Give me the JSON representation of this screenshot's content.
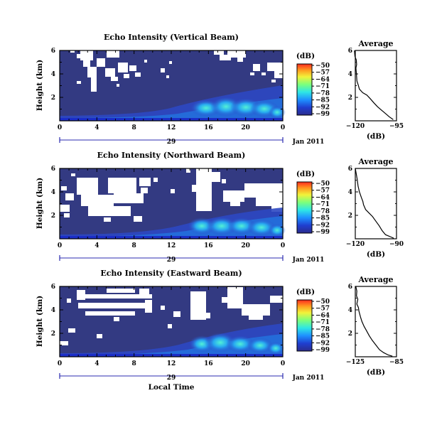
{
  "chart_data": [
    {
      "type": "heatmap",
      "title": "Echo Intensity (Vertical Beam)",
      "xlabel": "",
      "ylabel": "Height (km)",
      "x_ticks": [
        "0",
        "4",
        "8",
        "12",
        "16",
        "20",
        "0"
      ],
      "x_range_hours": [
        0,
        24
      ],
      "y_ticks": [
        "6",
        "4",
        "2"
      ],
      "y_range_km": [
        0,
        6
      ],
      "date_day": "29",
      "date_label": "Jan 2011",
      "colorbar": {
        "label": "(dB)",
        "ticks": [
          "-50",
          "-57",
          "-64",
          "-71",
          "-78",
          "-85",
          "-92",
          "-99"
        ],
        "range": [
          -99,
          -50
        ]
      },
      "profile": {
        "title": "Average",
        "xlabel": "(dB)",
        "x_ticks": [
          "-120",
          "-95"
        ],
        "x_range": [
          -120,
          -95
        ],
        "y_ticks": [
          "6",
          "4",
          "2"
        ],
        "points": [
          [
            -120.5,
            6.0
          ],
          [
            -120.2,
            5.5
          ],
          [
            -119.4,
            5.2
          ],
          [
            -119.2,
            4.8
          ],
          [
            -119.6,
            4.5
          ],
          [
            -119.3,
            4.0
          ],
          [
            -119.0,
            3.4
          ],
          [
            -118.3,
            3.1
          ],
          [
            -117.5,
            2.7
          ],
          [
            -115.5,
            2.4
          ],
          [
            -113.0,
            2.2
          ],
          [
            -111.0,
            1.9
          ],
          [
            -108.5,
            1.5
          ],
          [
            -106.5,
            1.2
          ],
          [
            -104.0,
            0.9
          ],
          [
            -101.5,
            0.6
          ],
          [
            -99.5,
            0.35
          ],
          [
            -97.0,
            0.1
          ]
        ]
      }
    },
    {
      "type": "heatmap",
      "title": "Echo Intensity (Northward Beam)",
      "xlabel": "",
      "ylabel": "Height (km)",
      "x_ticks": [
        "0",
        "4",
        "8",
        "12",
        "16",
        "20",
        "0"
      ],
      "x_range_hours": [
        0,
        24
      ],
      "y_ticks": [
        "6",
        "4",
        "2"
      ],
      "y_range_km": [
        0,
        6
      ],
      "date_day": "29",
      "date_label": "Jan 2011",
      "colorbar": {
        "label": "(dB)",
        "ticks": [
          "-50",
          "-57",
          "-64",
          "-71",
          "-78",
          "-85",
          "-92",
          "-99"
        ],
        "range": [
          -99,
          -50
        ]
      },
      "profile": {
        "title": "Average",
        "xlabel": "(dB)",
        "x_ticks": [
          "-120",
          "-90"
        ],
        "x_range": [
          -120,
          -90
        ],
        "y_ticks": [
          "6",
          "4",
          "2"
        ],
        "points": [
          [
            -120.0,
            6.0
          ],
          [
            -119.2,
            5.5
          ],
          [
            -118.5,
            5.0
          ],
          [
            -118.0,
            4.5
          ],
          [
            -117.0,
            4.0
          ],
          [
            -115.5,
            3.5
          ],
          [
            -114.5,
            3.2
          ],
          [
            -114.0,
            2.9
          ],
          [
            -112.5,
            2.5
          ],
          [
            -110.0,
            2.2
          ],
          [
            -107.5,
            1.9
          ],
          [
            -105.0,
            1.5
          ],
          [
            -102.5,
            1.1
          ],
          [
            -100.5,
            0.7
          ],
          [
            -98.0,
            0.35
          ],
          [
            -94.0,
            0.15
          ],
          [
            -92.0,
            0.05
          ]
        ]
      }
    },
    {
      "type": "heatmap",
      "title": "Echo Intensity (Eastward Beam)",
      "xlabel": "Local Time",
      "ylabel": "Height (km)",
      "x_ticks": [
        "0",
        "4",
        "8",
        "12",
        "16",
        "20",
        "0"
      ],
      "x_range_hours": [
        0,
        24
      ],
      "y_ticks": [
        "6",
        "4",
        "2"
      ],
      "y_range_km": [
        0,
        6
      ],
      "date_day": "29",
      "date_label": "Jan 2011",
      "colorbar": {
        "label": "(dB)",
        "ticks": [
          "-50",
          "-57",
          "-64",
          "-71",
          "-78",
          "-85",
          "-92",
          "-99"
        ],
        "range": [
          -99,
          -50
        ]
      },
      "profile": {
        "title": "Average",
        "xlabel": "(dB)",
        "x_ticks": [
          "-125",
          "-85"
        ],
        "x_range": [
          -125,
          -85
        ],
        "y_ticks": [
          "6",
          "4",
          "2"
        ],
        "points": [
          [
            -124.5,
            6.0
          ],
          [
            -123.5,
            5.6
          ],
          [
            -123.8,
            5.2
          ],
          [
            -122.5,
            4.9
          ],
          [
            -123.5,
            4.5
          ],
          [
            -122.0,
            4.2
          ],
          [
            -121.5,
            3.9
          ],
          [
            -120.0,
            3.4
          ],
          [
            -118.5,
            3.0
          ],
          [
            -116.5,
            2.6
          ],
          [
            -114.0,
            2.2
          ],
          [
            -111.5,
            1.8
          ],
          [
            -108.5,
            1.4
          ],
          [
            -105.0,
            1.0
          ],
          [
            -101.5,
            0.6
          ],
          [
            -97.5,
            0.35
          ],
          [
            -93.0,
            0.15
          ],
          [
            -89.0,
            0.05
          ]
        ]
      }
    }
  ]
}
